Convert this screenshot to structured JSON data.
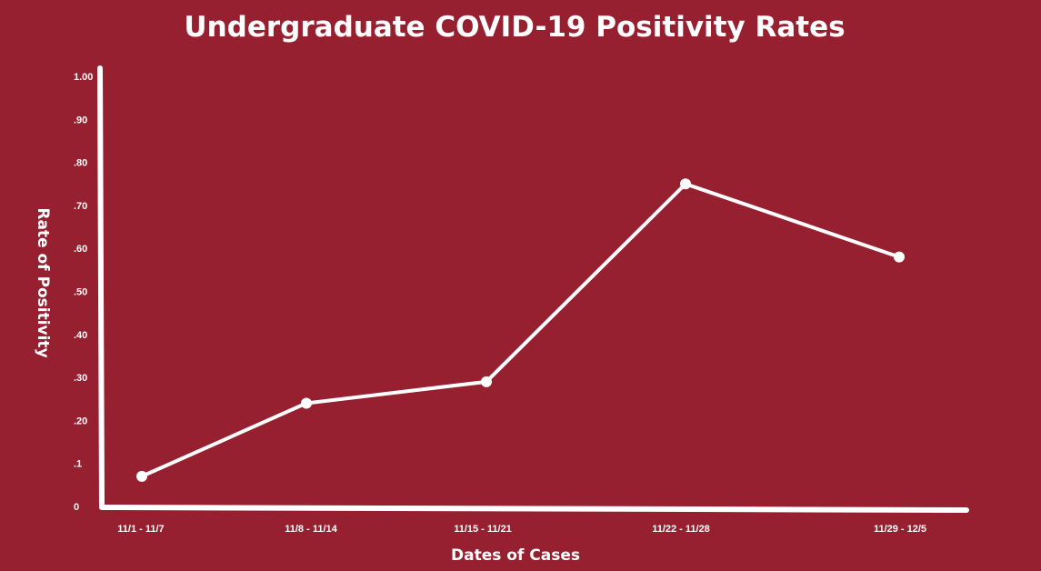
{
  "colors": {
    "background": "#972030",
    "foreground": "#ffffff"
  },
  "chart_data": {
    "type": "line",
    "title": "Undergraduate COVID-19 Positivity Rates",
    "xlabel": "Dates of Cases",
    "ylabel": "Rate of Positivity",
    "categories": [
      "11/1 - 11/7",
      "11/8 - 11/14",
      "11/15 - 11/21",
      "11/22 - 11/28",
      "11/29 - 12/5"
    ],
    "series": [
      {
        "values": [
          0.07,
          0.24,
          0.29,
          0.75,
          0.58
        ]
      }
    ],
    "ylim": [
      0,
      1.0
    ],
    "y_ticks": [
      {
        "value": 0,
        "label": "0"
      },
      {
        "value": 0.1,
        "label": ".1"
      },
      {
        "value": 0.2,
        "label": ".20"
      },
      {
        "value": 0.3,
        "label": ".30"
      },
      {
        "value": 0.4,
        "label": ".40"
      },
      {
        "value": 0.5,
        "label": ".50"
      },
      {
        "value": 0.6,
        "label": ".60"
      },
      {
        "value": 0.7,
        "label": ".70"
      },
      {
        "value": 0.8,
        "label": ".80"
      },
      {
        "value": 0.9,
        "label": ".90"
      },
      {
        "value": 1.0,
        "label": "1.00"
      }
    ],
    "grid": false,
    "markers": true
  }
}
